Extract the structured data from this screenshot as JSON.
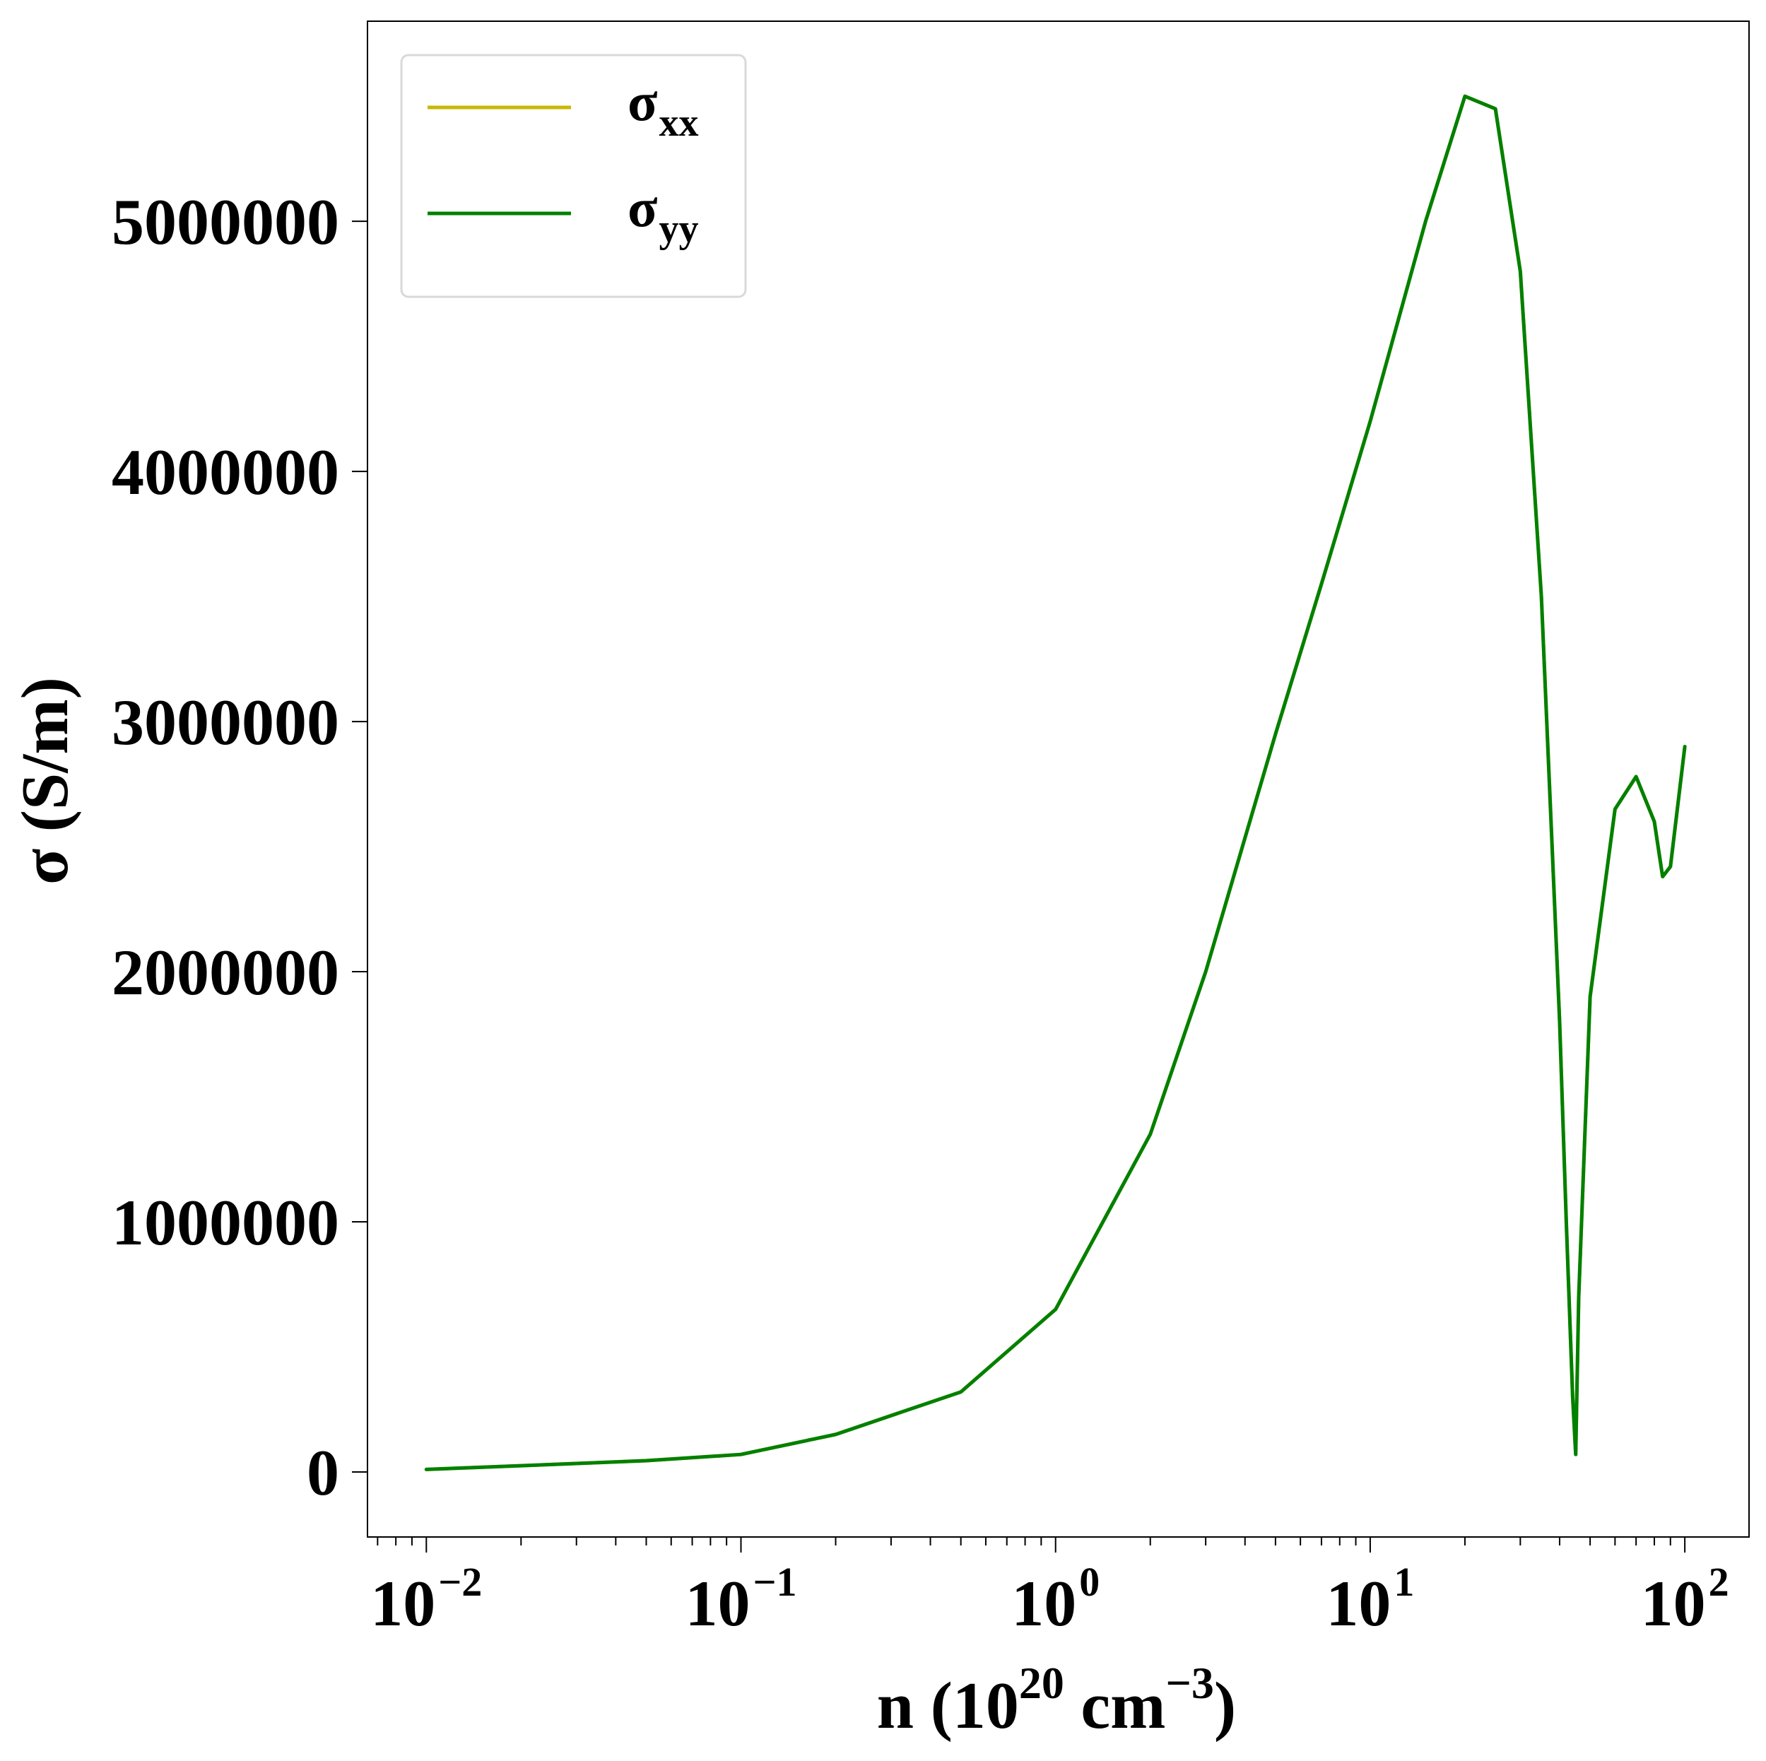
{
  "chart_data": {
    "type": "line",
    "title": "",
    "xlabel": {
      "base": "n (10",
      "exp1": "20",
      "middle": " cm",
      "exp2": "−3",
      "tail": ")"
    },
    "ylabel": "σ (S/m)",
    "x_scale": "log",
    "xlim": [
      0.0065,
      160
    ],
    "ylim": [
      -260000,
      5800000
    ],
    "xticks": [
      {
        "value": 0.01,
        "base": "10",
        "exp": "−2"
      },
      {
        "value": 0.1,
        "base": "10",
        "exp": "−1"
      },
      {
        "value": 1,
        "base": "10",
        "exp": "0"
      },
      {
        "value": 10,
        "base": "10",
        "exp": "1"
      },
      {
        "value": 100,
        "base": "10",
        "exp": "2"
      }
    ],
    "yticks": [
      {
        "value": 0,
        "label": "0"
      },
      {
        "value": 1000000,
        "label": "1000000"
      },
      {
        "value": 2000000,
        "label": "2000000"
      },
      {
        "value": 3000000,
        "label": "3000000"
      },
      {
        "value": 4000000,
        "label": "4000000"
      },
      {
        "value": 5000000,
        "label": "5000000"
      }
    ],
    "legend": {
      "position": "upper-left",
      "entries": [
        {
          "name": "σ",
          "subscript": "xx",
          "color": "#c9b800"
        },
        {
          "name": "σ",
          "subscript": "yy",
          "color": "#008000"
        }
      ]
    },
    "series": [
      {
        "name": "σxx",
        "color": "#c9b800",
        "x": [
          0.01,
          0.02,
          0.05,
          0.1,
          0.2,
          0.5,
          1,
          2,
          3,
          5,
          7,
          10,
          15,
          20,
          25,
          30,
          35,
          40,
          42,
          44,
          45,
          46,
          50,
          60,
          70,
          80,
          85,
          90,
          100
        ],
        "y": [
          10000,
          25000,
          45000,
          70000,
          150000,
          320000,
          650000,
          1350000,
          2000000,
          2950000,
          3550000,
          4200000,
          5000000,
          5500000,
          5450000,
          4800000,
          3500000,
          1800000,
          1000000,
          300000,
          70000,
          700000,
          1900000,
          2650000,
          2780000,
          2600000,
          2380000,
          2420000,
          2900000
        ]
      },
      {
        "name": "σyy",
        "color": "#008000",
        "x": [
          0.01,
          0.02,
          0.05,
          0.1,
          0.2,
          0.5,
          1,
          2,
          3,
          5,
          7,
          10,
          15,
          20,
          25,
          30,
          35,
          40,
          42,
          44,
          45,
          46,
          50,
          60,
          70,
          80,
          85,
          90,
          100
        ],
        "y": [
          10000,
          25000,
          45000,
          70000,
          150000,
          320000,
          650000,
          1350000,
          2000000,
          2950000,
          3550000,
          4200000,
          5000000,
          5500000,
          5450000,
          4800000,
          3500000,
          1800000,
          1000000,
          300000,
          70000,
          700000,
          1900000,
          2650000,
          2780000,
          2600000,
          2380000,
          2420000,
          2900000
        ]
      }
    ],
    "grid": false
  }
}
